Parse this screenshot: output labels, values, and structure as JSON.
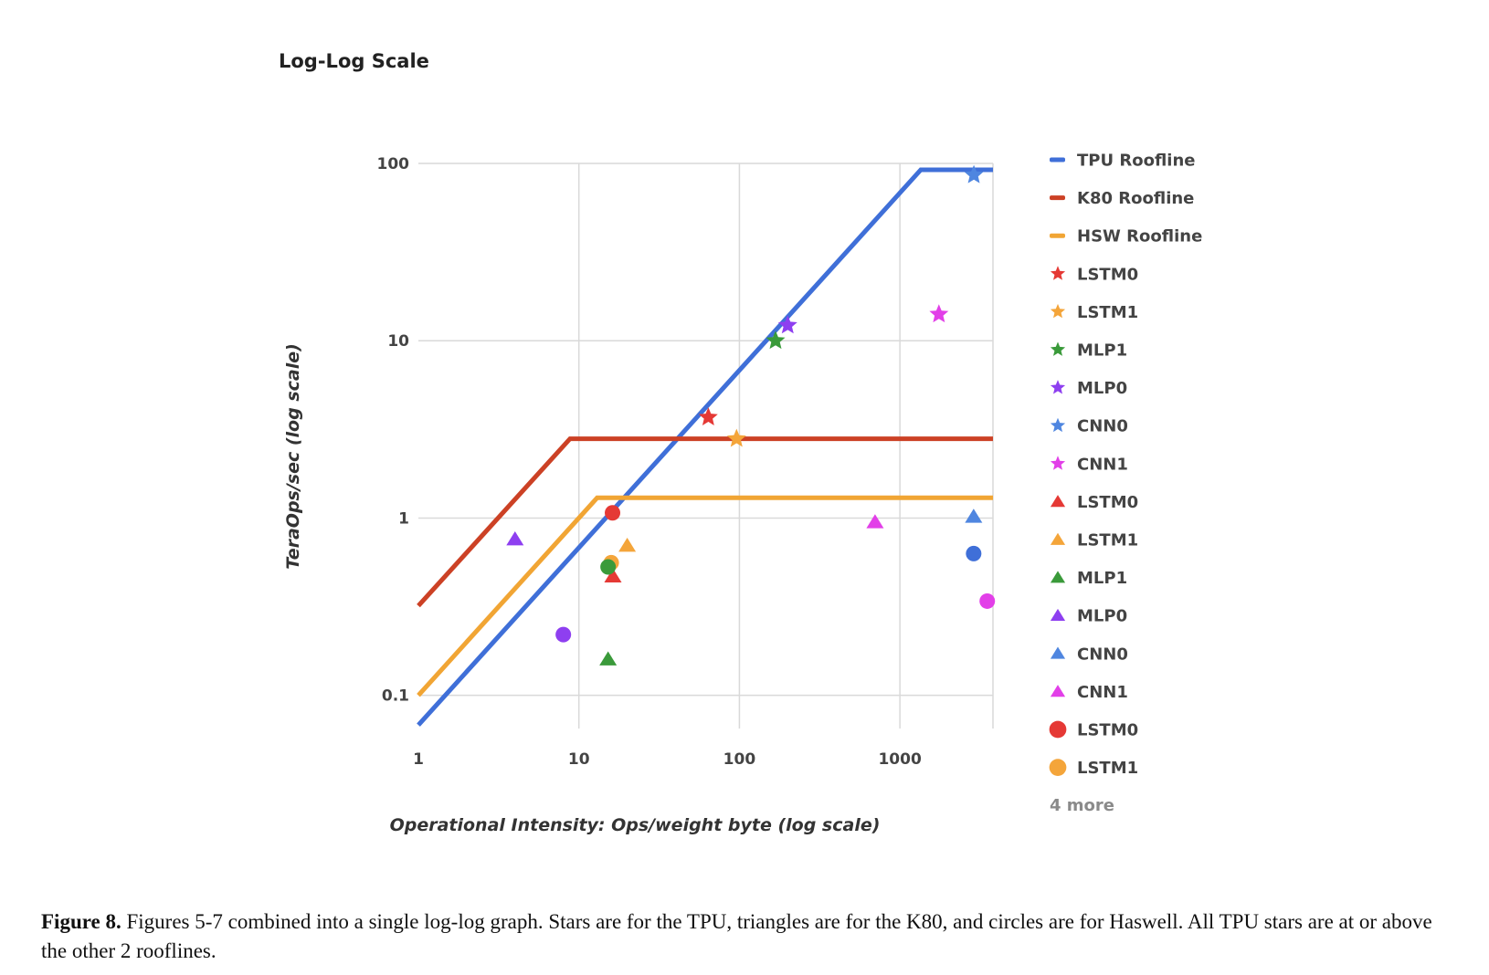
{
  "caption": {
    "label": "Figure 8.",
    "text": " Figures 5-7 combined into a single log-log graph. Stars are for the TPU, triangles are for the K80, and circles are for Haswell. All TPU stars are at or above the other 2 rooflines."
  },
  "chart_data": {
    "type": "scatter",
    "title": "Log-Log Scale",
    "xlabel": "Operational Intensity: Ops/weight byte (log scale)",
    "ylabel": "TeraOps/sec (log scale)",
    "xscale": "log",
    "yscale": "log",
    "xlim": [
      1,
      3800
    ],
    "ylim": [
      0.065,
      100
    ],
    "x_ticks": [
      {
        "value": 1,
        "label": "1"
      },
      {
        "value": 10,
        "label": "10"
      },
      {
        "value": 100,
        "label": "100"
      },
      {
        "value": 1000,
        "label": "1000"
      }
    ],
    "y_ticks": [
      {
        "value": 0.1,
        "label": "0.1"
      },
      {
        "value": 1,
        "label": "1"
      },
      {
        "value": 10,
        "label": "10"
      },
      {
        "value": 100,
        "label": "100"
      }
    ],
    "grid": true,
    "legend_position": "right",
    "legend_more": "4 more",
    "colors": {
      "tpu": "#3f6fd8",
      "k80": "#cc4125",
      "hsw": "#f1a534",
      "lstm0": "#e53935",
      "lstm1": "#f4a53a",
      "mlp1": "#3a9a3a",
      "mlp0": "#8e3ff0",
      "cnn0": "#4f86e0",
      "cnn1": "#e23fe8"
    },
    "lines": [
      {
        "name": "TPU Roofline",
        "color": "#3f6fd8",
        "x": [
          1,
          1350,
          3800
        ],
        "y": [
          0.068,
          92,
          92
        ]
      },
      {
        "name": "K80 Roofline",
        "color": "#cc4125",
        "x": [
          1,
          8.8,
          3800
        ],
        "y": [
          0.32,
          2.8,
          2.8
        ]
      },
      {
        "name": "HSW Roofline",
        "color": "#f1a534",
        "x": [
          1,
          13,
          3800
        ],
        "y": [
          0.1,
          1.3,
          1.3
        ]
      }
    ],
    "series": [
      {
        "name": "LSTM0",
        "marker": "star",
        "color": "#e53935",
        "x": [
          64
        ],
        "y": [
          3.7
        ]
      },
      {
        "name": "LSTM1",
        "marker": "star",
        "color": "#f4a53a",
        "x": [
          96
        ],
        "y": [
          2.8
        ]
      },
      {
        "name": "MLP1",
        "marker": "star",
        "color": "#3a9a3a",
        "x": [
          168
        ],
        "y": [
          10
        ]
      },
      {
        "name": "MLP0",
        "marker": "star",
        "color": "#8e3ff0",
        "x": [
          200
        ],
        "y": [
          12.2
        ]
      },
      {
        "name": "CNN0",
        "marker": "star",
        "color": "#4f86e0",
        "x": [
          2888
        ],
        "y": [
          86
        ]
      },
      {
        "name": "CNN1",
        "marker": "star",
        "color": "#e23fe8",
        "x": [
          1750
        ],
        "y": [
          14.1
        ]
      },
      {
        "name": "LSTM0",
        "marker": "triangle",
        "color": "#e53935",
        "x": [
          16.3
        ],
        "y": [
          0.47
        ]
      },
      {
        "name": "LSTM1",
        "marker": "triangle",
        "color": "#f4a53a",
        "x": [
          20
        ],
        "y": [
          0.7
        ]
      },
      {
        "name": "MLP1",
        "marker": "triangle",
        "color": "#3a9a3a",
        "x": [
          15.2
        ],
        "y": [
          0.16
        ]
      },
      {
        "name": "MLP0",
        "marker": "triangle",
        "color": "#8e3ff0",
        "x": [
          4
        ],
        "y": [
          0.76
        ]
      },
      {
        "name": "CNN0",
        "marker": "triangle",
        "color": "#4f86e0",
        "x": [
          2880
        ],
        "y": [
          1.02
        ]
      },
      {
        "name": "CNN1",
        "marker": "triangle",
        "color": "#e23fe8",
        "x": [
          700
        ],
        "y": [
          0.95
        ]
      },
      {
        "name": "LSTM0",
        "marker": "circle",
        "color": "#e53935",
        "x": [
          16.2
        ],
        "y": [
          1.07
        ]
      },
      {
        "name": "LSTM1",
        "marker": "circle",
        "color": "#f4a53a",
        "x": [
          15.9
        ],
        "y": [
          0.56
        ]
      },
      {
        "name": "",
        "marker": "circle",
        "color": "#3a9a3a",
        "x": [
          15.2
        ],
        "y": [
          0.53
        ]
      },
      {
        "name": "",
        "marker": "circle",
        "color": "#8e3ff0",
        "x": [
          8
        ],
        "y": [
          0.22
        ]
      },
      {
        "name": "",
        "marker": "circle",
        "color": "#3f6fd8",
        "x": [
          2880
        ],
        "y": [
          0.63
        ]
      },
      {
        "name": "",
        "marker": "circle",
        "color": "#e23fe8",
        "x": [
          3500
        ],
        "y": [
          0.34
        ]
      }
    ],
    "legend": [
      {
        "label": "TPU Roofline",
        "marker": "line",
        "color": "#3f6fd8"
      },
      {
        "label": "K80 Roofline",
        "marker": "line",
        "color": "#cc4125"
      },
      {
        "label": "HSW Roofline",
        "marker": "line",
        "color": "#f1a534"
      },
      {
        "label": "LSTM0",
        "marker": "star",
        "color": "#e53935"
      },
      {
        "label": "LSTM1",
        "marker": "star",
        "color": "#f4a53a"
      },
      {
        "label": "MLP1",
        "marker": "star",
        "color": "#3a9a3a"
      },
      {
        "label": "MLP0",
        "marker": "star",
        "color": "#8e3ff0"
      },
      {
        "label": "CNN0",
        "marker": "star",
        "color": "#4f86e0"
      },
      {
        "label": "CNN1",
        "marker": "star",
        "color": "#e23fe8"
      },
      {
        "label": "LSTM0",
        "marker": "triangle",
        "color": "#e53935"
      },
      {
        "label": "LSTM1",
        "marker": "triangle",
        "color": "#f4a53a"
      },
      {
        "label": "MLP1",
        "marker": "triangle",
        "color": "#3a9a3a"
      },
      {
        "label": "MLP0",
        "marker": "triangle",
        "color": "#8e3ff0"
      },
      {
        "label": "CNN0",
        "marker": "triangle",
        "color": "#4f86e0"
      },
      {
        "label": "CNN1",
        "marker": "triangle",
        "color": "#e23fe8"
      },
      {
        "label": "LSTM0",
        "marker": "circle",
        "color": "#e53935"
      },
      {
        "label": "LSTM1",
        "marker": "circle",
        "color": "#f4a53a"
      }
    ]
  }
}
